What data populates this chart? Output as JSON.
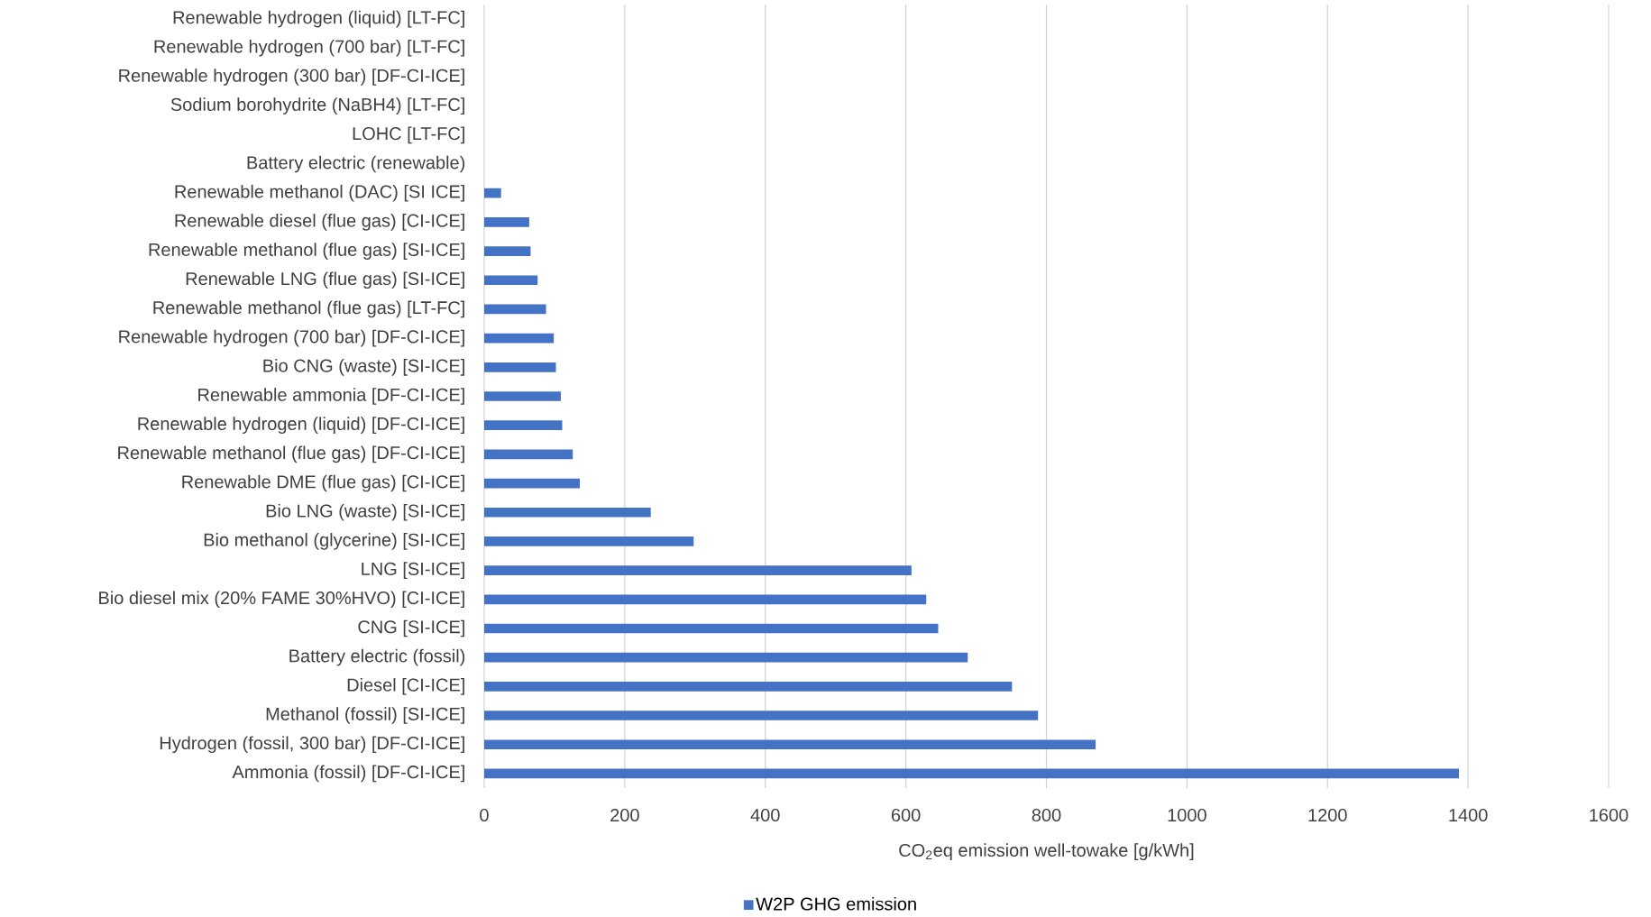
{
  "chart_data": {
    "type": "bar",
    "orientation": "horizontal",
    "categories": [
      "Renewable hydrogen (liquid) [LT-FC]",
      "Renewable hydrogen (700 bar) [LT-FC]",
      "Renewable hydrogen (300 bar) [DF-CI-ICE]",
      "Sodium borohydrite (NaBH4) [LT-FC]",
      "LOHC [LT-FC]",
      "Battery electric (renewable)",
      "Renewable methanol (DAC) [SI ICE]",
      "Renewable diesel (flue gas) [CI-ICE]",
      "Renewable methanol (flue gas) [SI-ICE]",
      "Renewable LNG (flue gas) [SI-ICE]",
      "Renewable methanol (flue gas) [LT-FC]",
      "Renewable hydrogen (700 bar) [DF-CI-ICE]",
      "Bio CNG (waste) [SI-ICE]",
      "Renewable ammonia [DF-CI-ICE]",
      "Renewable hydrogen (liquid) [DF-CI-ICE]",
      "Renewable methanol (flue gas) [DF-CI-ICE]",
      "Renewable DME (flue gas) [CI-ICE]",
      "Bio LNG (waste) [SI-ICE]",
      "Bio methanol (glycerine) [SI-ICE]",
      "LNG [SI-ICE]",
      "Bio diesel mix (20% FAME 30%HVO) [CI-ICE]",
      "CNG [SI-ICE]",
      "Battery electric (fossil)",
      "Diesel [CI-ICE]",
      "Methanol (fossil) [SI-ICE]",
      "Hydrogen (fossil, 300 bar) [DF-CI-ICE]",
      "Ammonia (fossil) [DF-CI-ICE]"
    ],
    "series": [
      {
        "name": "W2P GHG emission",
        "color": "#4472c4",
        "values": [
          0,
          0,
          0,
          0,
          0,
          0,
          24,
          64,
          66,
          76,
          88,
          99,
          102,
          109,
          111,
          126,
          136,
          237,
          298,
          608,
          629,
          646,
          688,
          751,
          788,
          870,
          1387
        ]
      }
    ],
    "xlabel": "CO$_{2}$eq emission well-towake [g/kWh]",
    "xlim": [
      0,
      1600
    ],
    "xticks": [
      0,
      200,
      400,
      600,
      800,
      1000,
      1200,
      1400,
      1600
    ],
    "grid": "x",
    "legend": "bottom"
  }
}
